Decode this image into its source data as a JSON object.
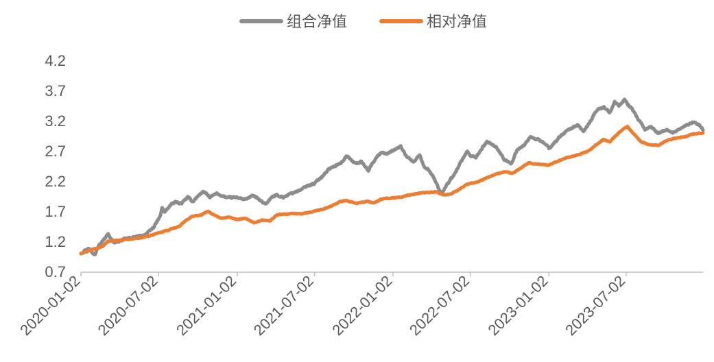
{
  "chart_data": {
    "type": "line",
    "title": "",
    "xlabel": "",
    "ylabel": "",
    "legend_position": "top-center",
    "grid": false,
    "ylim": [
      0.7,
      4.2
    ],
    "yticks": [
      "0.7",
      "1.2",
      "1.7",
      "2.2",
      "2.7",
      "3.2",
      "3.7",
      "4.2"
    ],
    "xlim": [
      "2020-01-02",
      "2023-12-29"
    ],
    "xticks": [
      "2020-01-02",
      "2020-07-02",
      "2021-01-02",
      "2021-07-02",
      "2022-01-02",
      "2022-07-02",
      "2023-01-02",
      "2023-07-02"
    ],
    "series": [
      {
        "name": "组合净值",
        "color": "#8c8c8c",
        "points": [
          [
            "2020-01-02",
            1.0
          ],
          [
            "2020-01-10",
            1.05
          ],
          [
            "2020-01-20",
            1.08
          ],
          [
            "2020-02-04",
            0.99
          ],
          [
            "2020-02-12",
            1.12
          ],
          [
            "2020-02-24",
            1.22
          ],
          [
            "2020-03-05",
            1.33
          ],
          [
            "2020-03-12",
            1.25
          ],
          [
            "2020-03-20",
            1.18
          ],
          [
            "2020-03-30",
            1.2
          ],
          [
            "2020-04-15",
            1.24
          ],
          [
            "2020-05-06",
            1.27
          ],
          [
            "2020-05-25",
            1.29
          ],
          [
            "2020-06-10",
            1.36
          ],
          [
            "2020-06-22",
            1.45
          ],
          [
            "2020-07-06",
            1.62
          ],
          [
            "2020-07-10",
            1.76
          ],
          [
            "2020-07-16",
            1.68
          ],
          [
            "2020-07-28",
            1.79
          ],
          [
            "2020-08-10",
            1.85
          ],
          [
            "2020-08-25",
            1.83
          ],
          [
            "2020-09-08",
            1.93
          ],
          [
            "2020-09-20",
            1.86
          ],
          [
            "2020-10-05",
            1.97
          ],
          [
            "2020-10-15",
            2.03
          ],
          [
            "2020-10-30",
            1.93
          ],
          [
            "2020-11-15",
            1.99
          ],
          [
            "2020-12-10",
            1.92
          ],
          [
            "2021-01-02",
            1.93
          ],
          [
            "2021-01-20",
            1.89
          ],
          [
            "2021-02-10",
            1.96
          ],
          [
            "2021-02-25",
            1.87
          ],
          [
            "2021-03-10",
            1.82
          ],
          [
            "2021-03-22",
            1.92
          ],
          [
            "2021-04-05",
            1.97
          ],
          [
            "2021-04-20",
            1.93
          ],
          [
            "2021-05-10",
            2.0
          ],
          [
            "2021-05-30",
            2.05
          ],
          [
            "2021-06-15",
            2.12
          ],
          [
            "2021-07-02",
            2.16
          ],
          [
            "2021-07-20",
            2.28
          ],
          [
            "2021-08-05",
            2.4
          ],
          [
            "2021-08-20",
            2.45
          ],
          [
            "2021-09-05",
            2.52
          ],
          [
            "2021-09-15",
            2.62
          ],
          [
            "2021-10-05",
            2.49
          ],
          [
            "2021-10-20",
            2.52
          ],
          [
            "2021-11-05",
            2.38
          ],
          [
            "2021-11-20",
            2.55
          ],
          [
            "2021-12-05",
            2.68
          ],
          [
            "2021-12-20",
            2.65
          ],
          [
            "2022-01-02",
            2.7
          ],
          [
            "2022-01-20",
            2.77
          ],
          [
            "2022-02-05",
            2.58
          ],
          [
            "2022-02-20",
            2.52
          ],
          [
            "2022-03-05",
            2.63
          ],
          [
            "2022-03-15",
            2.45
          ],
          [
            "2022-03-28",
            2.38
          ],
          [
            "2022-04-10",
            2.22
          ],
          [
            "2022-04-20",
            2.05
          ],
          [
            "2022-04-27",
            2.0
          ],
          [
            "2022-05-10",
            2.16
          ],
          [
            "2022-05-25",
            2.3
          ],
          [
            "2022-06-10",
            2.52
          ],
          [
            "2022-06-25",
            2.68
          ],
          [
            "2022-07-02",
            2.62
          ],
          [
            "2022-07-15",
            2.58
          ],
          [
            "2022-07-28",
            2.73
          ],
          [
            "2022-08-10",
            2.85
          ],
          [
            "2022-08-20",
            2.82
          ],
          [
            "2022-09-05",
            2.73
          ],
          [
            "2022-09-20",
            2.55
          ],
          [
            "2022-10-05",
            2.48
          ],
          [
            "2022-10-20",
            2.72
          ],
          [
            "2022-11-05",
            2.8
          ],
          [
            "2022-11-20",
            2.93
          ],
          [
            "2022-12-10",
            2.88
          ],
          [
            "2022-12-25",
            2.81
          ],
          [
            "2023-01-02",
            2.74
          ],
          [
            "2023-01-15",
            2.83
          ],
          [
            "2023-02-01",
            2.97
          ],
          [
            "2023-02-20",
            3.06
          ],
          [
            "2023-03-10",
            3.13
          ],
          [
            "2023-03-25",
            3.02
          ],
          [
            "2023-04-10",
            3.2
          ],
          [
            "2023-04-25",
            3.38
          ],
          [
            "2023-05-10",
            3.43
          ],
          [
            "2023-05-25",
            3.33
          ],
          [
            "2023-06-05",
            3.5
          ],
          [
            "2023-06-15",
            3.45
          ],
          [
            "2023-06-28",
            3.55
          ],
          [
            "2023-07-06",
            3.47
          ],
          [
            "2023-07-15",
            3.4
          ],
          [
            "2023-07-30",
            3.22
          ],
          [
            "2023-08-15",
            3.05
          ],
          [
            "2023-08-30",
            3.1
          ],
          [
            "2023-09-15",
            2.99
          ],
          [
            "2023-10-05",
            3.05
          ],
          [
            "2023-10-20",
            3.0
          ],
          [
            "2023-11-05",
            3.07
          ],
          [
            "2023-11-20",
            3.12
          ],
          [
            "2023-12-05",
            3.18
          ],
          [
            "2023-12-18",
            3.14
          ],
          [
            "2023-12-29",
            3.05
          ]
        ]
      },
      {
        "name": "相对净值",
        "color": "#ed7d31",
        "points": [
          [
            "2020-01-02",
            1.0
          ],
          [
            "2020-02-01",
            1.07
          ],
          [
            "2020-02-20",
            1.11
          ],
          [
            "2020-03-05",
            1.2
          ],
          [
            "2020-03-20",
            1.21
          ],
          [
            "2020-04-15",
            1.23
          ],
          [
            "2020-05-15",
            1.25
          ],
          [
            "2020-06-10",
            1.29
          ],
          [
            "2020-07-02",
            1.34
          ],
          [
            "2020-07-30",
            1.4
          ],
          [
            "2020-08-20",
            1.45
          ],
          [
            "2020-09-05",
            1.55
          ],
          [
            "2020-09-20",
            1.62
          ],
          [
            "2020-10-10",
            1.64
          ],
          [
            "2020-10-25",
            1.7
          ],
          [
            "2020-11-10",
            1.63
          ],
          [
            "2020-11-25",
            1.58
          ],
          [
            "2020-12-15",
            1.6
          ],
          [
            "2021-01-02",
            1.56
          ],
          [
            "2021-01-20",
            1.58
          ],
          [
            "2021-02-10",
            1.51
          ],
          [
            "2021-03-01",
            1.55
          ],
          [
            "2021-03-20",
            1.54
          ],
          [
            "2021-04-05",
            1.64
          ],
          [
            "2021-05-05",
            1.66
          ],
          [
            "2021-06-05",
            1.66
          ],
          [
            "2021-07-02",
            1.7
          ],
          [
            "2021-07-25",
            1.74
          ],
          [
            "2021-08-15",
            1.8
          ],
          [
            "2021-09-01",
            1.86
          ],
          [
            "2021-09-15",
            1.88
          ],
          [
            "2021-10-05",
            1.83
          ],
          [
            "2021-11-01",
            1.86
          ],
          [
            "2021-11-20",
            1.84
          ],
          [
            "2021-12-05",
            1.9
          ],
          [
            "2022-01-02",
            1.92
          ],
          [
            "2022-01-20",
            1.93
          ],
          [
            "2022-02-10",
            1.97
          ],
          [
            "2022-03-05",
            2.0
          ],
          [
            "2022-03-25",
            2.01
          ],
          [
            "2022-04-15",
            2.02
          ],
          [
            "2022-04-27",
            1.97
          ],
          [
            "2022-05-15",
            1.98
          ],
          [
            "2022-06-01",
            2.04
          ],
          [
            "2022-06-20",
            2.13
          ],
          [
            "2022-07-02",
            2.16
          ],
          [
            "2022-07-25",
            2.2
          ],
          [
            "2022-08-15",
            2.27
          ],
          [
            "2022-09-01",
            2.32
          ],
          [
            "2022-09-20",
            2.35
          ],
          [
            "2022-10-10",
            2.33
          ],
          [
            "2022-10-25",
            2.4
          ],
          [
            "2022-11-15",
            2.5
          ],
          [
            "2022-12-10",
            2.48
          ],
          [
            "2023-01-02",
            2.46
          ],
          [
            "2023-01-20",
            2.52
          ],
          [
            "2023-02-15",
            2.59
          ],
          [
            "2023-03-15",
            2.64
          ],
          [
            "2023-04-05",
            2.7
          ],
          [
            "2023-04-25",
            2.81
          ],
          [
            "2023-05-10",
            2.89
          ],
          [
            "2023-05-25",
            2.85
          ],
          [
            "2023-06-10",
            2.97
          ],
          [
            "2023-06-28",
            3.08
          ],
          [
            "2023-07-05",
            3.1
          ],
          [
            "2023-07-20",
            2.98
          ],
          [
            "2023-08-05",
            2.85
          ],
          [
            "2023-08-25",
            2.8
          ],
          [
            "2023-09-15",
            2.79
          ],
          [
            "2023-10-05",
            2.87
          ],
          [
            "2023-10-25",
            2.91
          ],
          [
            "2023-11-15",
            2.93
          ],
          [
            "2023-12-05",
            2.98
          ],
          [
            "2023-12-29",
            3.0
          ]
        ]
      }
    ]
  }
}
